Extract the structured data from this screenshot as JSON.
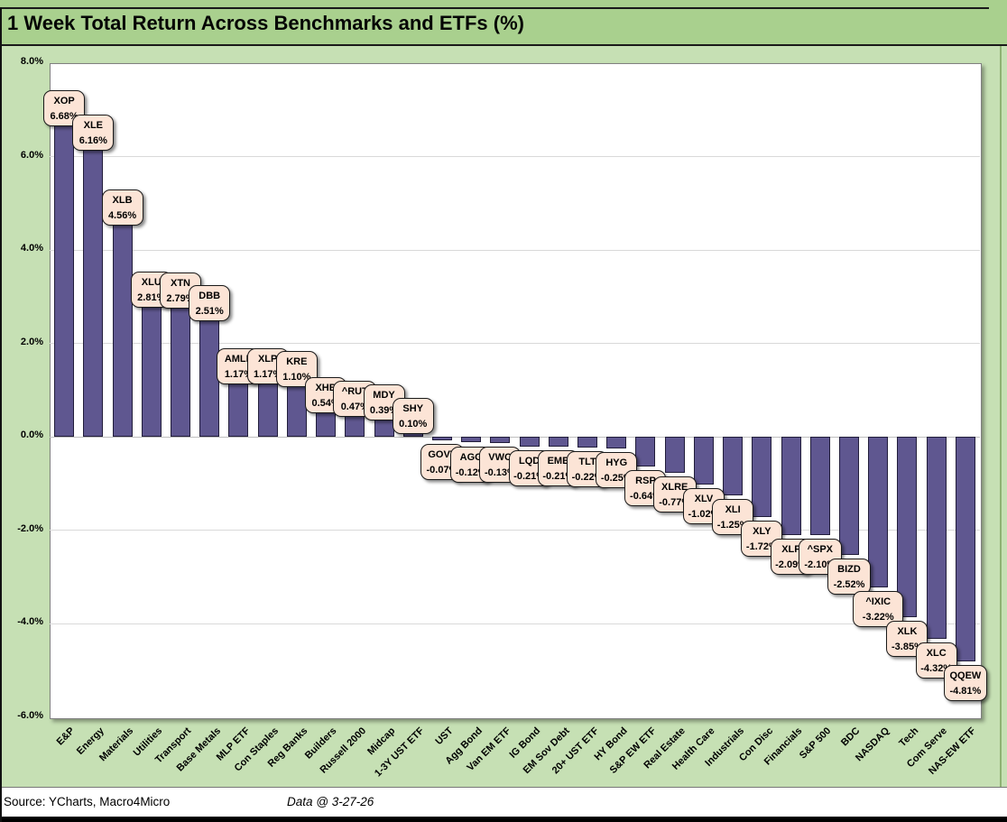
{
  "header": {
    "title": "1 Week Total Return Across Benchmarks and ETFs (%)"
  },
  "chart_data": {
    "type": "bar",
    "title": "1 Week Total Return Across Benchmarks and ETFs (%)",
    "xlabel": "",
    "ylabel": "",
    "ylim": [
      -6,
      8
    ],
    "grid": true,
    "legend": false,
    "data_label_style": "rounded peach callout with ticker and percent (2 decimals), outside end",
    "y_ticks": [
      {
        "label": "8.0%",
        "value": 8
      },
      {
        "label": "6.0%",
        "value": 6
      },
      {
        "label": "4.0%",
        "value": 4
      },
      {
        "label": "2.0%",
        "value": 2
      },
      {
        "label": "0.0%",
        "value": 0
      },
      {
        "label": "-2.0%",
        "value": -2
      },
      {
        "label": "-4.0%",
        "value": -4
      },
      {
        "label": "-6.0%",
        "value": -6
      }
    ],
    "categories": [
      "E&P",
      "Energy",
      "Materials",
      "Utilities",
      "Transport",
      "Base Metals",
      "MLP ETF",
      "Con Staples",
      "Reg Banks",
      "Builders",
      "Russell 2000",
      "Midcap",
      "1-3Y UST ETF",
      "UST",
      "Agg Bond",
      "Van EM ETF",
      "IG Bond",
      "EM Sov Debt",
      "20+ UST ETF",
      "HY Bond",
      "S&P EW ETF",
      "Real Estate",
      "Health Care",
      "Industrials",
      "Con Disc",
      "Financials",
      "S&P 500",
      "BDC",
      "NASDAQ",
      "Tech",
      "Com Serve",
      "NAS-EW ETF"
    ],
    "tickers": [
      "XOP",
      "XLE",
      "XLB",
      "XLU",
      "XTN",
      "DBB",
      "AMLP",
      "XLP",
      "KRE",
      "XHB",
      "^RUT",
      "MDY",
      "SHY",
      "GOVT",
      "AGG",
      "VWO",
      "LQD",
      "EMB",
      "TLT",
      "HYG",
      "RSP",
      "XLRE",
      "XLV",
      "XLI",
      "XLY",
      "XLF",
      "^SPX",
      "BIZD",
      "^IXIC",
      "XLK",
      "XLC",
      "QQEW"
    ],
    "values": [
      6.68,
      6.16,
      4.56,
      2.81,
      2.79,
      2.51,
      1.17,
      1.17,
      1.1,
      0.54,
      0.47,
      0.39,
      0.1,
      -0.07,
      -0.12,
      -0.13,
      -0.21,
      -0.21,
      -0.22,
      -0.25,
      -0.64,
      -0.77,
      -1.02,
      -1.25,
      -1.72,
      -2.09,
      -2.1,
      -2.52,
      -3.22,
      -3.85,
      -4.32,
      -4.81
    ]
  },
  "footer": {
    "source": "Source: YCharts, Macro4Micro",
    "date": "Data @ 3-27-26"
  },
  "colors": {
    "header_green": "#A9D08E",
    "background_green": "#C6E0B4",
    "plot_background": "#FFFFFF",
    "bar_fill": "#5F5790",
    "bar_border": "#211D3A",
    "gridline": "#D9D9D9",
    "zero_line": "#BFBFBF",
    "label_box_fill": "#FCE4D6",
    "label_box_border": "#1A1A1A",
    "text": "#000000"
  }
}
